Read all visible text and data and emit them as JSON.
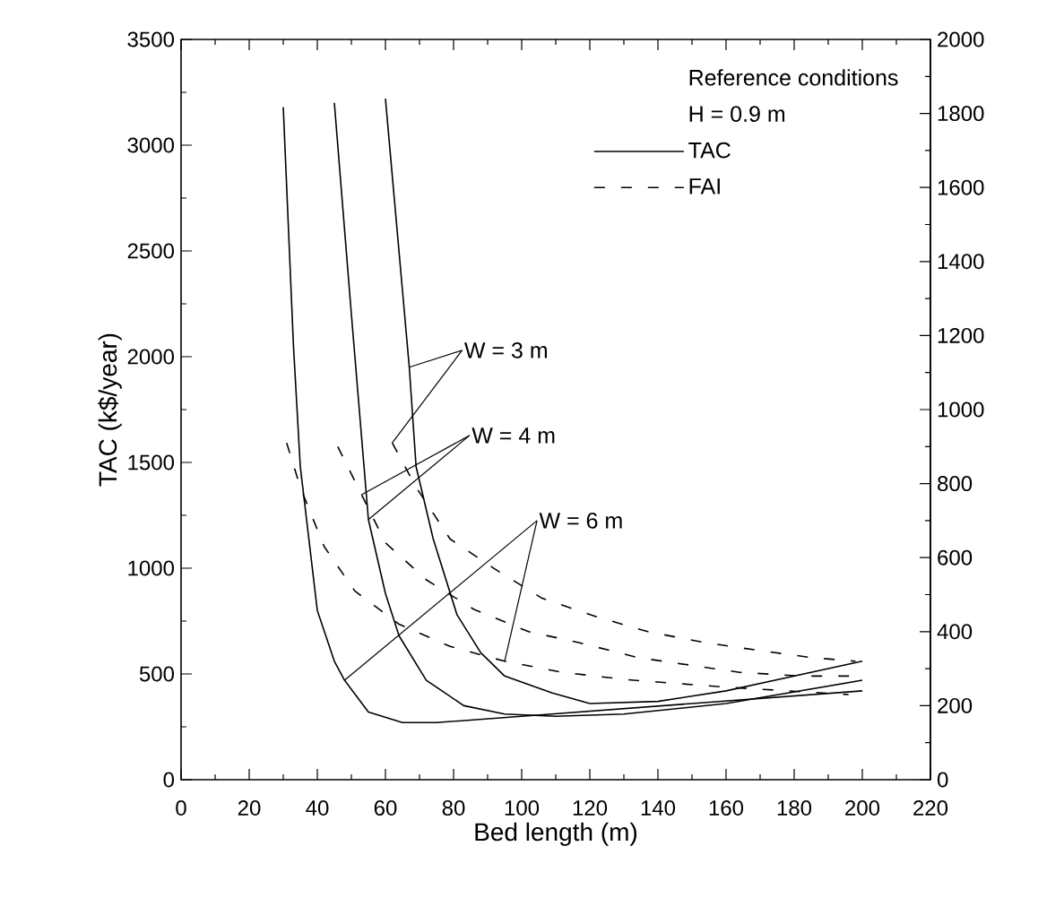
{
  "chart_data": {
    "type": "line",
    "xlabel": "Bed length (m)",
    "ylabel": "TAC (k$/year)",
    "xlim": [
      0,
      220
    ],
    "xticks": [
      0,
      20,
      40,
      60,
      80,
      100,
      120,
      140,
      160,
      180,
      200,
      220
    ],
    "ylim": [
      0,
      3500
    ],
    "yticks": [
      0,
      500,
      1000,
      1500,
      2000,
      2500,
      3000,
      3500
    ],
    "y2lim": [
      0,
      2000
    ],
    "y2ticks": [
      0,
      200,
      400,
      600,
      800,
      1000,
      1200,
      1400,
      1600,
      1800,
      2000
    ],
    "legend": "top right",
    "legend_title": "Reference conditions",
    "grid": false,
    "marker": "none",
    "annotations": [
      "H = 0.9 m",
      {
        "text": "W = 3 m",
        "x": 67,
        "y": 1950
      },
      {
        "text": "W = 4 m",
        "x": 55,
        "y": 1230
      },
      {
        "text": "W = 6 m",
        "x": 48,
        "y": 470
      }
    ],
    "series": [
      {
        "name": "TAC",
        "color": "#000000",
        "line_style": "solid",
        "x": [
          60,
          67,
          69,
          74,
          81,
          88,
          95,
          109,
          120,
          140,
          160,
          180,
          200
        ],
        "values": [
          3220,
          1950,
          1480,
          1140,
          780,
          600,
          490,
          410,
          360,
          370,
          420,
          490,
          560
        ]
      },
      {
        "color": "#000000",
        "line_style": "solid",
        "x": [
          45,
          50,
          55,
          60,
          64,
          72,
          83,
          95,
          110,
          130,
          160,
          200
        ],
        "values": [
          3200,
          2200,
          1230,
          880,
          680,
          470,
          350,
          310,
          300,
          310,
          360,
          470
        ]
      },
      {
        "color": "#000000",
        "line_style": "solid",
        "x": [
          30,
          33,
          35,
          40,
          45,
          48,
          55,
          65,
          75,
          100,
          150,
          200
        ],
        "values": [
          3180,
          2050,
          1480,
          800,
          560,
          470,
          320,
          270,
          270,
          300,
          360,
          420
        ]
      },
      {
        "name": "FAI",
        "color": "#000000",
        "line_style": "dashed",
        "axis": "y2",
        "x": [
          62,
          69,
          79,
          92,
          106,
          122,
          137,
          154,
          169,
          185,
          198
        ],
        "values": [
          910,
          790,
          650,
          570,
          490,
          440,
          400,
          370,
          350,
          330,
          320
        ]
      },
      {
        "color": "#000000",
        "line_style": "dashed",
        "axis": "y2",
        "x": [
          46,
          53,
          60,
          72,
          86,
          102,
          117,
          134,
          164,
          182,
          198
        ],
        "values": [
          900,
          770,
          640,
          540,
          460,
          400,
          370,
          330,
          290,
          280,
          280
        ]
      },
      {
        "color": "#000000",
        "line_style": "dashed",
        "axis": "y2",
        "x": [
          31,
          35,
          42,
          51,
          64,
          79,
          95,
          112,
          131,
          160,
          196
        ],
        "values": [
          910,
          790,
          630,
          510,
          420,
          360,
          320,
          290,
          270,
          250,
          230
        ]
      }
    ]
  }
}
